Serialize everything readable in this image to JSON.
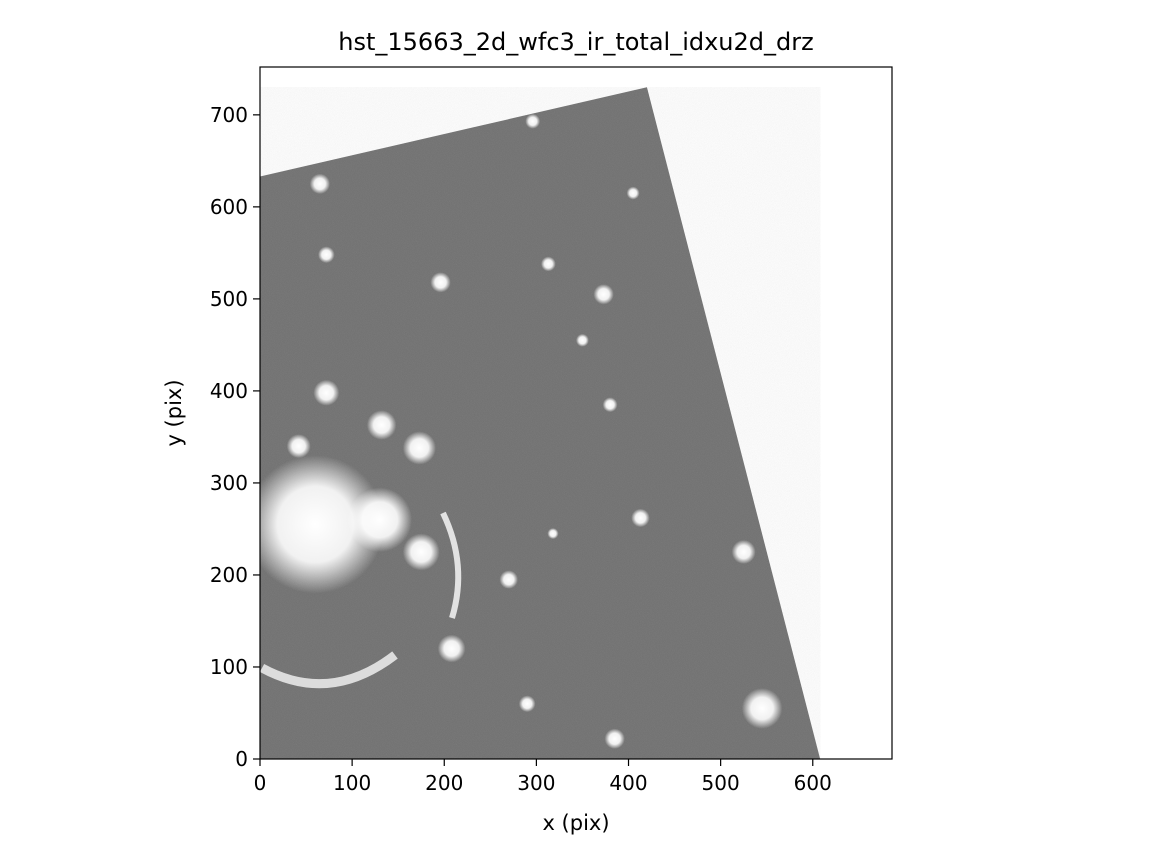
{
  "figure": {
    "title": "hst_15663_2d_wfc3_ir_total_idxu2d_drz",
    "xlabel": "x (pix)",
    "ylabel": "y (pix)"
  },
  "axes": {
    "xlim": [
      0,
      686
    ],
    "ylim": [
      0,
      752
    ],
    "xticks": [
      0,
      100,
      200,
      300,
      400,
      500,
      600
    ],
    "yticks": [
      0,
      100,
      200,
      300,
      400,
      500,
      600,
      700
    ]
  },
  "image": {
    "description_colormap": "gray",
    "background_color": "#6e6e6e",
    "footprint_pix": [
      [
        0,
        0
      ],
      [
        0,
        633
      ],
      [
        420,
        730
      ],
      [
        608,
        0
      ]
    ],
    "bright_sources_pix": [
      {
        "x": 60,
        "y": 255,
        "r": 75,
        "kind": "cluster-core"
      },
      {
        "x": 130,
        "y": 260,
        "r": 35,
        "kind": "galaxy"
      },
      {
        "x": 175,
        "y": 225,
        "r": 20,
        "kind": "galaxy"
      },
      {
        "x": 173,
        "y": 338,
        "r": 18,
        "kind": "galaxy"
      },
      {
        "x": 132,
        "y": 363,
        "r": 16,
        "kind": "galaxy"
      },
      {
        "x": 72,
        "y": 398,
        "r": 14,
        "kind": "galaxy"
      },
      {
        "x": 42,
        "y": 340,
        "r": 13,
        "kind": "galaxy"
      },
      {
        "x": 65,
        "y": 625,
        "r": 11,
        "kind": "galaxy"
      },
      {
        "x": 72,
        "y": 548,
        "r": 9,
        "kind": "galaxy"
      },
      {
        "x": 196,
        "y": 518,
        "r": 11,
        "kind": "galaxy"
      },
      {
        "x": 373,
        "y": 505,
        "r": 11,
        "kind": "galaxy"
      },
      {
        "x": 313,
        "y": 538,
        "r": 8,
        "kind": "galaxy"
      },
      {
        "x": 413,
        "y": 262,
        "r": 10,
        "kind": "galaxy"
      },
      {
        "x": 525,
        "y": 225,
        "r": 13,
        "kind": "galaxy"
      },
      {
        "x": 270,
        "y": 195,
        "r": 10,
        "kind": "galaxy"
      },
      {
        "x": 208,
        "y": 120,
        "r": 15,
        "kind": "galaxy"
      },
      {
        "x": 290,
        "y": 60,
        "r": 9,
        "kind": "galaxy"
      },
      {
        "x": 385,
        "y": 22,
        "r": 11,
        "kind": "galaxy"
      },
      {
        "x": 545,
        "y": 55,
        "r": 22,
        "kind": "saturated-star"
      },
      {
        "x": 296,
        "y": 693,
        "r": 8,
        "kind": "galaxy"
      },
      {
        "x": 405,
        "y": 615,
        "r": 7,
        "kind": "galaxy"
      },
      {
        "x": 318,
        "y": 245,
        "r": 6,
        "kind": "galaxy"
      },
      {
        "x": 350,
        "y": 455,
        "r": 7,
        "kind": "galaxy"
      },
      {
        "x": 380,
        "y": 385,
        "r": 8,
        "kind": "galaxy"
      }
    ]
  }
}
